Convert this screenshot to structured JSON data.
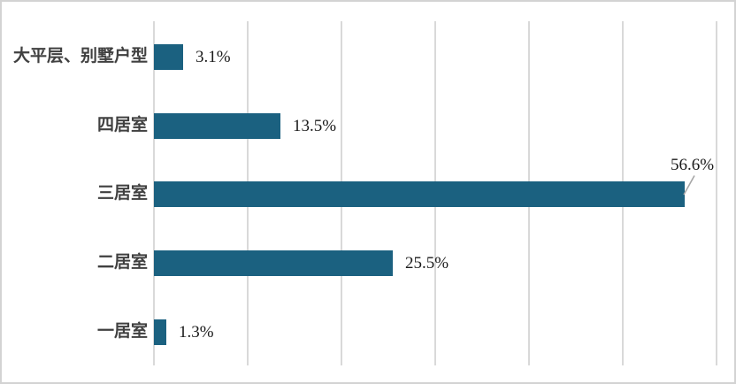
{
  "chart_data": {
    "type": "bar",
    "orientation": "horizontal",
    "title": "",
    "xlabel": "",
    "ylabel": "",
    "categories": [
      "大平层、别墅户型",
      "四居室",
      "三居室",
      "二居室",
      "一居室"
    ],
    "values": [
      3.1,
      13.5,
      56.6,
      25.5,
      1.3
    ],
    "value_labels": [
      "3.1%",
      "13.5%",
      "56.6%",
      "25.5%",
      "1.3%"
    ],
    "xlim": [
      0,
      62
    ],
    "gridline_step": 10,
    "gridline_max": 60,
    "grid": "vertical-only",
    "legend": "none",
    "axis_tick_labels": "none",
    "callout_index": 2,
    "callout_style": "label-above-with-leader-line",
    "colors": {
      "bar": "#1B6180",
      "gridline": "#D9D9D9",
      "category_label": "#404040",
      "value_label": "#1A1A1A",
      "leader_line": "#A6A6A6",
      "frame_border": "#D3D3D3",
      "background": "#FFFFFF"
    }
  }
}
